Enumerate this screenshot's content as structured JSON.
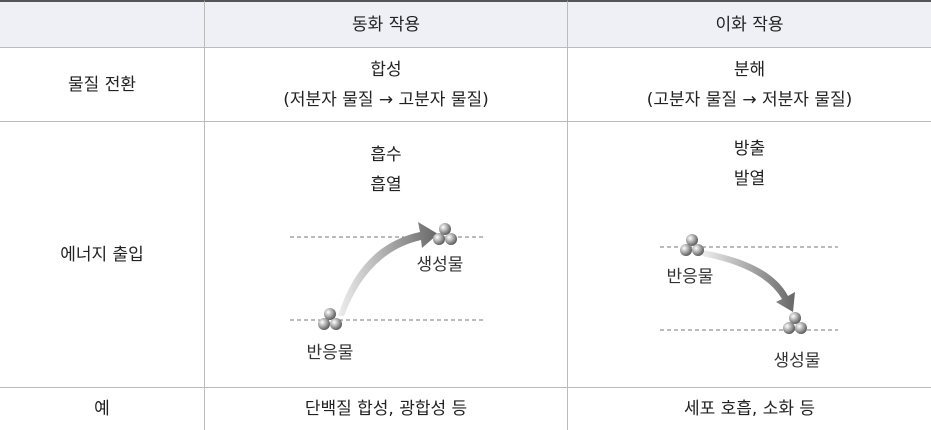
{
  "table": {
    "columns": [
      "동화 작용",
      "이화 작용"
    ],
    "rows": [
      {
        "label": "물질 전환",
        "cells": [
          [
            "합성",
            "(저분자 물질 → 고분자 물질)"
          ],
          [
            "분해",
            "(고분자 물질 → 저분자 물질)"
          ]
        ]
      },
      {
        "label": "에너지 출입",
        "cells": [
          [
            "흡수",
            "흡열"
          ],
          [
            "방출",
            "발열"
          ]
        ]
      },
      {
        "label": "예",
        "cells": [
          [
            "단백질 합성, 광합성 등"
          ],
          [
            "세포 호흡, 소화 등"
          ]
        ]
      }
    ]
  },
  "diagrams": [
    {
      "top_label": "생성물",
      "bottom_label": "반응물"
    },
    {
      "top_label": "반응물",
      "bottom_label": "생성물"
    }
  ]
}
